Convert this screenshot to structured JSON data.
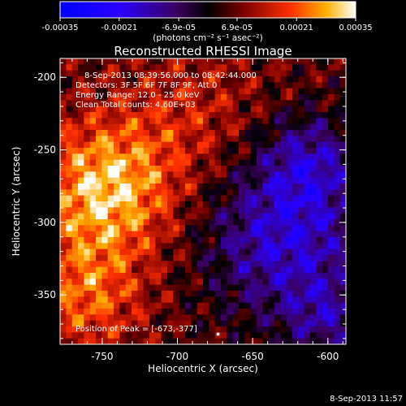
{
  "chart_data": {
    "type": "heatmap",
    "title": "Reconstructed RHESSI Image",
    "xlabel": "Heliocentric X (arcsec)",
    "ylabel": "Heliocentric Y (arcsec)",
    "xlim": [
      -778,
      -588
    ],
    "ylim": [
      -384,
      -187
    ],
    "x_ticks": [
      "-750",
      "-700",
      "-650",
      "-600"
    ],
    "x_tick_values": [
      -750,
      -700,
      -650,
      -600
    ],
    "y_ticks": [
      "-200",
      "-250",
      "-300",
      "-350"
    ],
    "y_tick_values": [
      -200,
      -250,
      -300,
      -350
    ],
    "colorbar": {
      "tick_labels": [
        "-0.00035",
        "-0.00021",
        "-6.9e-05",
        "6.9e-05",
        "0.00021",
        "0.00035"
      ],
      "tick_values": [
        -0.00035,
        -0.00021,
        -6.9e-05,
        6.9e-05,
        0.00021,
        0.00035
      ],
      "range": [
        -0.00035,
        0.00035
      ],
      "unit_label": "(photons cm⁻² s⁻¹ asec⁻²)"
    },
    "annotations": {
      "time_range": "8-Sep-2013 08:39:56.000 to 08:42:44.000",
      "detectors": "Detectors: 3F 5F 6F 7F 8F 9F, Att 0",
      "energy": "Energy Range: 12.0 - 25.0 keV",
      "clean": "Clean    Total counts: 4.60E+03",
      "peak": "Position of Peak = [-673,-377]"
    },
    "peak_position": [
      -673,
      -377
    ],
    "footer_timestamp": "8-Sep-2013 11:57"
  }
}
